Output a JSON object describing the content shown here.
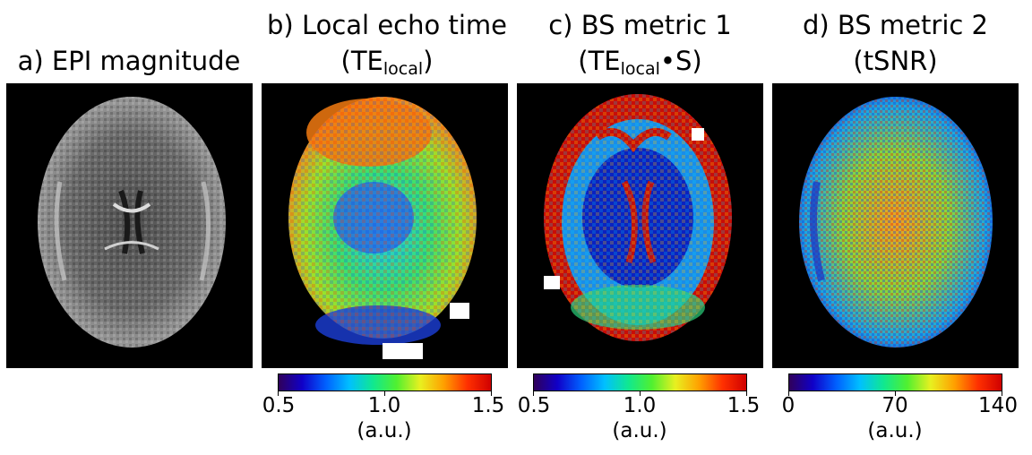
{
  "panels": [
    {
      "id": "a",
      "title_line1": "a) EPI magnitude",
      "title_line2": "",
      "image": "grayscale EPI brain axial slice"
    },
    {
      "id": "b",
      "title_line1": "b) Local echo time",
      "title_line2_pre": "(TE",
      "title_line2_sub": "local",
      "title_line2_post": ")",
      "colorbar": {
        "ticks": [
          "0.5",
          "1.0",
          "1.5"
        ],
        "unit": "(a.u.)"
      }
    },
    {
      "id": "c",
      "title_line1": "c) BS metric 1",
      "title_line2_pre": "(TE",
      "title_line2_sub": "local",
      "title_line2_post": "•S)",
      "colorbar": {
        "ticks": [
          "0.5",
          "1.0",
          "1.5"
        ],
        "unit": "(a.u.)"
      }
    },
    {
      "id": "d",
      "title_line1": "d) BS metric 2",
      "title_line2_pre": "(tSNR)",
      "title_line2_sub": "",
      "title_line2_post": "",
      "colorbar": {
        "ticks": [
          "0",
          "70",
          "140"
        ],
        "unit": "(a.u.)"
      }
    }
  ],
  "colors": {
    "background": "#ffffff",
    "panel_bg": "#000000"
  },
  "colormap": "jet"
}
